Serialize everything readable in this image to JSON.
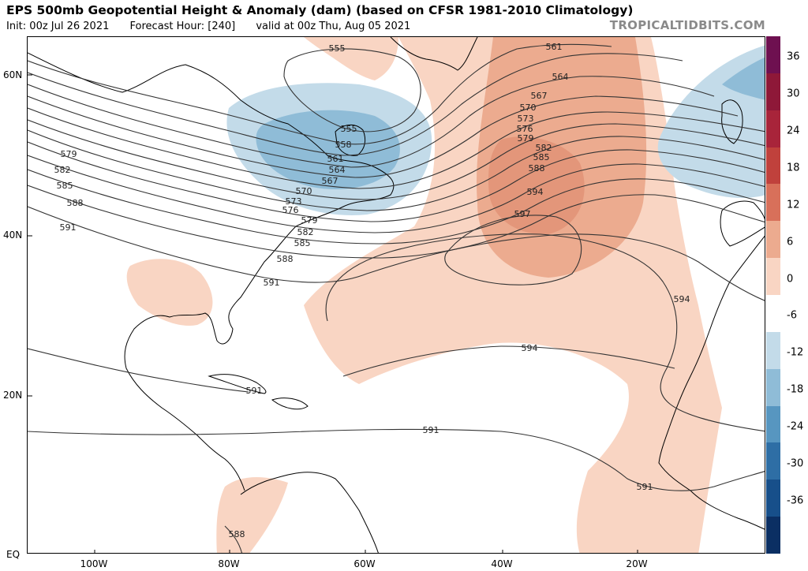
{
  "header": {
    "title": "EPS 500mb Geopotential Height & Anomaly (dam) (based on CFSR 1981-2010 Climatology)",
    "init": "Init: 00z Jul 26 2021",
    "forecast_hour": "Forecast Hour: [240]",
    "valid": "valid at 00z Thu, Aug 05 2021",
    "brand": "TROPICALTIDBITS.COM"
  },
  "axes": {
    "lat_labels": [
      "60N",
      "40N",
      "20N",
      "EQ"
    ],
    "lon_labels": [
      "100W",
      "80W",
      "60W",
      "40W",
      "20W"
    ]
  },
  "colorbar": {
    "labels": [
      "36",
      "30",
      "24",
      "18",
      "12",
      "6",
      "0",
      "-6",
      "-12",
      "-18",
      "-24",
      "-30",
      "-36"
    ],
    "colors": [
      "#6e1050",
      "#8e1838",
      "#a8243a",
      "#c0413c",
      "#d8705a",
      "#ecab8f",
      "#f9d5c3",
      "#ffffff",
      "#c3dbe9",
      "#8fbcd7",
      "#5796c0",
      "#2e6ea5",
      "#174f8a",
      "#0b2f63"
    ]
  },
  "contours": {
    "labels": [
      "555",
      "555",
      "558",
      "561",
      "561",
      "564",
      "564",
      "567",
      "567",
      "570",
      "570",
      "573",
      "573",
      "576",
      "576",
      "579",
      "579",
      "579",
      "582",
      "582",
      "582",
      "585",
      "585",
      "585",
      "588",
      "588",
      "588",
      "588",
      "591",
      "591",
      "591",
      "591",
      "591",
      "594",
      "594",
      "594",
      "597"
    ]
  }
}
